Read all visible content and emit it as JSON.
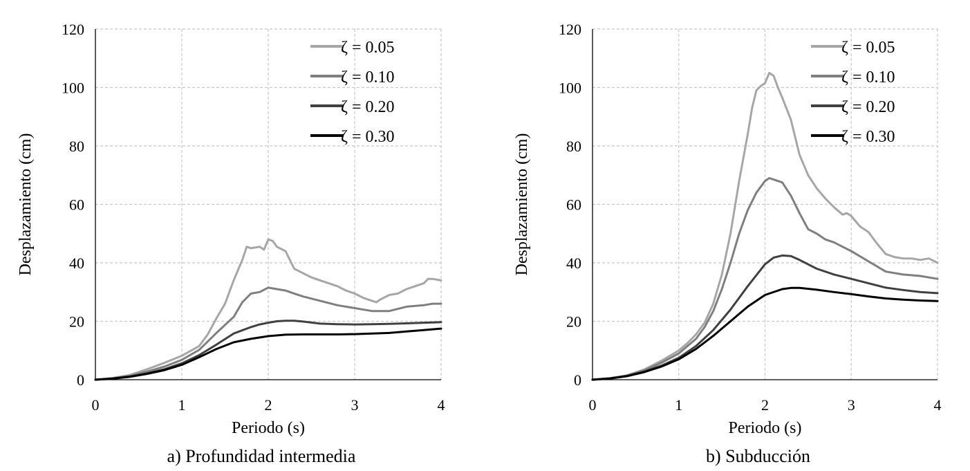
{
  "colors": {
    "s005": "#a6a6a6",
    "s010": "#7f7f7f",
    "s020": "#404040",
    "s030": "#000000",
    "grid": "#c8c8c8"
  },
  "chart_data": [
    {
      "type": "line",
      "caption": "a) Profundidad intermedia",
      "xlabel": "Periodo (s)",
      "ylabel": "Desplazamiento (cm)",
      "xlim": [
        0,
        4
      ],
      "ylim": [
        0,
        120
      ],
      "xticks": [
        "0",
        "1",
        "2",
        "3",
        "4"
      ],
      "yticks": [
        "0",
        "20",
        "40",
        "60",
        "80",
        "100",
        "120"
      ],
      "grid": true,
      "legend_position": "top-right",
      "series": [
        {
          "name": "ζ = 0.05",
          "color_key": "s005",
          "x": [
            0,
            0.2,
            0.4,
            0.6,
            0.8,
            1.0,
            1.2,
            1.3,
            1.4,
            1.5,
            1.6,
            1.7,
            1.75,
            1.8,
            1.9,
            1.95,
            2.0,
            2.05,
            2.1,
            2.2,
            2.3,
            2.4,
            2.5,
            2.6,
            2.7,
            2.8,
            2.9,
            3.0,
            3.1,
            3.2,
            3.25,
            3.3,
            3.4,
            3.5,
            3.6,
            3.7,
            3.8,
            3.85,
            3.9,
            4.0
          ],
          "y": [
            0,
            0.6,
            1.6,
            3.6,
            5.8,
            8.2,
            11.5,
            15.5,
            21,
            26,
            34,
            41,
            45.5,
            45,
            45.5,
            44.5,
            48,
            47.5,
            45.5,
            44,
            38,
            36.5,
            35,
            34,
            33,
            32,
            30.5,
            29.5,
            28,
            27,
            26.5,
            27.5,
            29,
            29.5,
            31,
            32,
            33,
            34.5,
            34.5,
            34
          ]
        },
        {
          "name": "ζ = 0.10",
          "color_key": "s010",
          "x": [
            0,
            0.2,
            0.4,
            0.6,
            0.8,
            1.0,
            1.2,
            1.4,
            1.6,
            1.7,
            1.8,
            1.9,
            2.0,
            2.1,
            2.2,
            2.3,
            2.4,
            2.6,
            2.8,
            3.0,
            3.2,
            3.4,
            3.6,
            3.8,
            3.9,
            4.0
          ],
          "y": [
            0,
            0.5,
            1.3,
            2.8,
            4.5,
            6.8,
            10.2,
            16,
            21.5,
            26.5,
            29.5,
            30,
            31.5,
            31,
            30.5,
            29.5,
            28.5,
            27,
            25.5,
            24.5,
            23.5,
            23.5,
            25,
            25.5,
            26,
            26
          ]
        },
        {
          "name": "ζ = 0.20",
          "color_key": "s020",
          "x": [
            0,
            0.2,
            0.4,
            0.6,
            0.8,
            1.0,
            1.2,
            1.4,
            1.6,
            1.8,
            1.9,
            2.0,
            2.1,
            2.2,
            2.3,
            2.4,
            2.6,
            2.8,
            3.0,
            3.2,
            3.4,
            3.6,
            3.8,
            4.0
          ],
          "y": [
            0,
            0.4,
            1.1,
            2.2,
            3.6,
            5.6,
            8.4,
            12,
            15.8,
            18,
            18.9,
            19.5,
            20,
            20.2,
            20.2,
            19.9,
            19.2,
            19,
            18.9,
            19,
            19.1,
            19.3,
            19.5,
            19.7
          ]
        },
        {
          "name": "ζ = 0.30",
          "color_key": "s030",
          "x": [
            0,
            0.2,
            0.4,
            0.6,
            0.8,
            1.0,
            1.2,
            1.4,
            1.6,
            1.8,
            2.0,
            2.2,
            2.4,
            2.6,
            2.8,
            3.0,
            3.2,
            3.4,
            3.6,
            3.8,
            4.0
          ],
          "y": [
            0,
            0.35,
            1,
            2,
            3.3,
            5.1,
            7.7,
            10.5,
            12.8,
            14,
            14.9,
            15.4,
            15.5,
            15.5,
            15.5,
            15.6,
            15.8,
            16,
            16.5,
            17,
            17.5
          ]
        }
      ]
    },
    {
      "type": "line",
      "caption": "b) Subducción",
      "xlabel": "Periodo (s)",
      "ylabel": "Desplazamiento (cm)",
      "xlim": [
        0,
        4
      ],
      "ylim": [
        0,
        120
      ],
      "xticks": [
        "0",
        "1",
        "2",
        "3",
        "4"
      ],
      "yticks": [
        "0",
        "20",
        "40",
        "60",
        "80",
        "100",
        "120"
      ],
      "grid": true,
      "legend_position": "top-right",
      "series": [
        {
          "name": "ζ = 0.05",
          "color_key": "s005",
          "x": [
            0,
            0.2,
            0.4,
            0.6,
            0.8,
            1.0,
            1.1,
            1.2,
            1.3,
            1.4,
            1.5,
            1.6,
            1.7,
            1.8,
            1.85,
            1.9,
            1.95,
            2.0,
            2.05,
            2.1,
            2.15,
            2.2,
            2.3,
            2.4,
            2.5,
            2.6,
            2.7,
            2.8,
            2.9,
            2.95,
            3.0,
            3.1,
            3.2,
            3.3,
            3.4,
            3.5,
            3.6,
            3.7,
            3.8,
            3.9,
            4.0
          ],
          "y": [
            0,
            0.5,
            1.5,
            3.5,
            6.5,
            10,
            12.5,
            15.5,
            19.5,
            26,
            36,
            50,
            68,
            84,
            93,
            99,
            100.5,
            101.5,
            105,
            104,
            100,
            96.5,
            89,
            77,
            70,
            65.5,
            62,
            59,
            56.5,
            57,
            56,
            52.5,
            50.5,
            46.5,
            43,
            42,
            41.5,
            41.5,
            41,
            41.5,
            40
          ]
        },
        {
          "name": "ζ = 0.10",
          "color_key": "s010",
          "x": [
            0,
            0.2,
            0.4,
            0.6,
            0.8,
            1.0,
            1.2,
            1.3,
            1.4,
            1.5,
            1.6,
            1.7,
            1.8,
            1.9,
            2.0,
            2.05,
            2.1,
            2.2,
            2.3,
            2.4,
            2.5,
            2.6,
            2.7,
            2.8,
            2.9,
            3.0,
            3.2,
            3.4,
            3.6,
            3.8,
            4.0
          ],
          "y": [
            0,
            0.5,
            1.4,
            3.2,
            5.8,
            9,
            14,
            18,
            23.5,
            31,
            40,
            50,
            58,
            64,
            68,
            69,
            68.5,
            67.5,
            63,
            57,
            51.5,
            50,
            48,
            47,
            45.5,
            44,
            40.5,
            37,
            36,
            35.5,
            34.5
          ]
        },
        {
          "name": "ζ = 0.20",
          "color_key": "s020",
          "x": [
            0,
            0.2,
            0.4,
            0.6,
            0.8,
            1.0,
            1.2,
            1.4,
            1.6,
            1.8,
            2.0,
            2.1,
            2.2,
            2.3,
            2.4,
            2.6,
            2.8,
            3.0,
            3.2,
            3.4,
            3.6,
            3.8,
            4.0
          ],
          "y": [
            0,
            0.45,
            1.3,
            2.8,
            4.8,
            7.5,
            11.5,
            17,
            24,
            32,
            39.5,
            41.8,
            42.5,
            42.3,
            41,
            38,
            36,
            34.5,
            33,
            31.5,
            30.7,
            30,
            29.6
          ]
        },
        {
          "name": "ζ = 0.30",
          "color_key": "s030",
          "x": [
            0,
            0.2,
            0.4,
            0.6,
            0.8,
            1.0,
            1.2,
            1.4,
            1.6,
            1.8,
            2.0,
            2.2,
            2.3,
            2.4,
            2.6,
            2.8,
            3.0,
            3.2,
            3.4,
            3.6,
            3.8,
            4.0
          ],
          "y": [
            0,
            0.4,
            1.2,
            2.6,
            4.5,
            7,
            10.5,
            15,
            20,
            25,
            29,
            31,
            31.4,
            31.4,
            30.8,
            30,
            29.3,
            28.5,
            27.8,
            27.4,
            27.1,
            26.9
          ]
        }
      ]
    }
  ]
}
